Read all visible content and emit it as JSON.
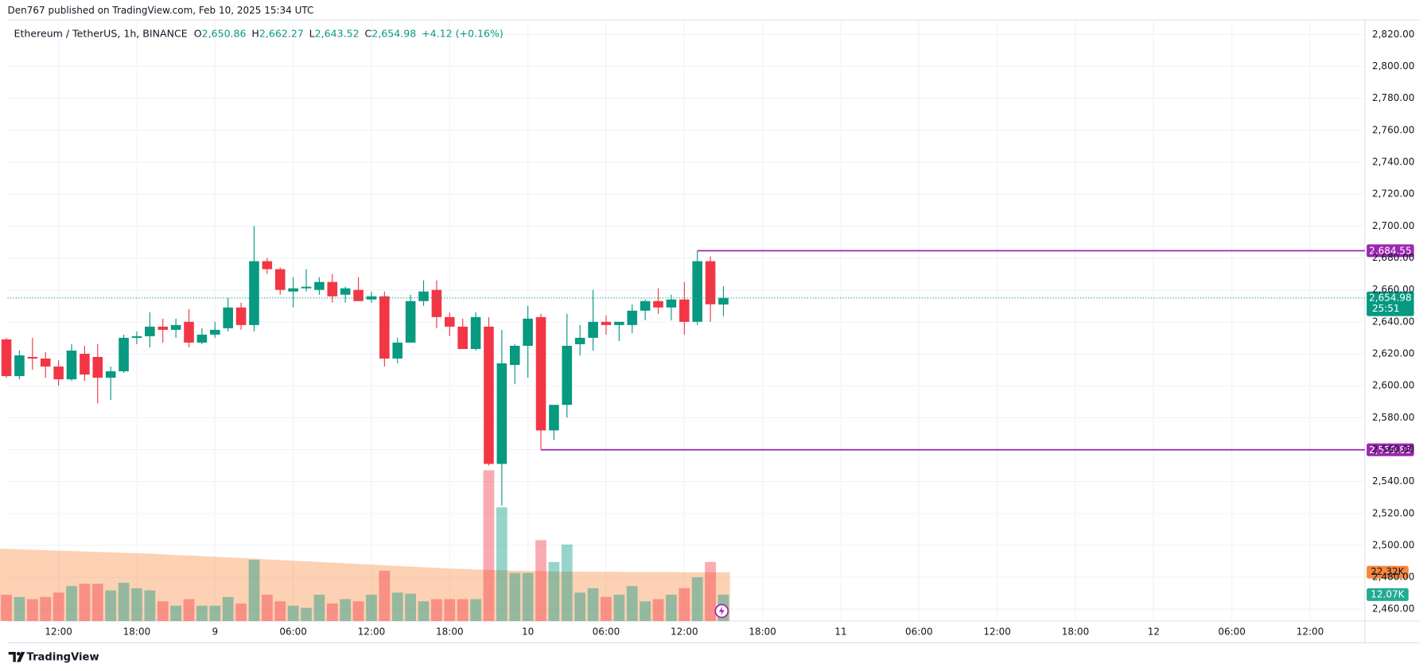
{
  "header": {
    "published": "Den767 published on TradingView.com, Feb 10, 2025 15:34 UTC"
  },
  "chart_data": {
    "type": "candlestick",
    "title": "Ethereum / TetherUS, 1h, BINANCE",
    "ohlc_legend": [
      {
        "label": "O",
        "value": "2,650.86"
      },
      {
        "label": "H",
        "value": "2,662.27"
      },
      {
        "label": "L",
        "value": "2,643.52"
      },
      {
        "label": "C",
        "value": "2,654.98"
      }
    ],
    "change": "+4.12 (+0.16%)",
    "open": [
      2629,
      2606,
      2618,
      2617,
      2612,
      2604,
      2620,
      2618,
      2605,
      2609,
      2630,
      2631,
      2637,
      2635,
      2640,
      2627,
      2632,
      2636,
      2649,
      2638,
      2678,
      2673,
      2659,
      2661,
      2660,
      2665,
      2657,
      2660,
      2654,
      2656,
      2617,
      2627,
      2653,
      2660,
      2643,
      2637,
      2623,
      2637,
      2551,
      2613,
      2625,
      2643,
      2572,
      2588,
      2626,
      2630,
      2640,
      2638,
      2638,
      2647,
      2653,
      2649,
      2654,
      2640,
      2678,
      2650.86
    ],
    "high": [
      2630,
      2622,
      2630,
      2621,
      2616,
      2626,
      2625,
      2626,
      2612,
      2632,
      2634,
      2646,
      2642,
      2642,
      2648,
      2636,
      2640,
      2655,
      2652,
      2700,
      2680,
      2674,
      2668,
      2673,
      2668,
      2670,
      2662,
      2668,
      2659,
      2659,
      2630,
      2657,
      2666,
      2666,
      2646,
      2642,
      2646,
      2643,
      2635,
      2626,
      2650,
      2645,
      2588,
      2645,
      2638,
      2660,
      2644,
      2640,
      2651,
      2654,
      2661,
      2657,
      2665,
      2684.55,
      2681,
      2662.27
    ],
    "low": [
      2605,
      2604,
      2610,
      2605,
      2600,
      2603,
      2603,
      2589,
      2591,
      2608,
      2626,
      2624,
      2627,
      2630,
      2624,
      2626,
      2630,
      2634,
      2635,
      2634,
      2670,
      2657,
      2649,
      2659,
      2657,
      2652,
      2652,
      2653,
      2652,
      2612,
      2614,
      2627,
      2650,
      2636,
      2631,
      2623,
      2622,
      2550,
      2525,
      2601,
      2605,
      2559.85,
      2566,
      2580,
      2619,
      2622,
      2632,
      2628,
      2633,
      2641,
      2645,
      2641,
      2632,
      2638,
      2640,
      2643.52
    ],
    "close": [
      2606,
      2619,
      2617,
      2612,
      2604,
      2622,
      2607,
      2605,
      2609,
      2630,
      2631,
      2637,
      2635,
      2638,
      2627,
      2632,
      2635,
      2649,
      2638,
      2678,
      2673,
      2660,
      2661,
      2662,
      2665,
      2656,
      2661,
      2653,
      2656,
      2617,
      2627,
      2653,
      2659,
      2643,
      2637,
      2623,
      2643,
      2551,
      2614,
      2625,
      2642,
      2572,
      2588,
      2625,
      2630,
      2640,
      2638,
      2640,
      2647,
      2653,
      2649,
      2654,
      2640,
      2678,
      2651,
      2654.98
    ],
    "volume": [
      12,
      11,
      10,
      11,
      13,
      16,
      17,
      17,
      14,
      17.5,
      15,
      14,
      9,
      7,
      10,
      7,
      7,
      11,
      8,
      28,
      12,
      9,
      7,
      6,
      12,
      8,
      10,
      9,
      12,
      23,
      13,
      12.5,
      9,
      10,
      10,
      10,
      10,
      69,
      52,
      22,
      22,
      37,
      27,
      35,
      13,
      15,
      11,
      12,
      16,
      9,
      10,
      12,
      15,
      20,
      27,
      12.07
    ],
    "volume_ma": [
      33,
      32.8,
      32.6,
      32.4,
      32.2,
      32,
      31.8,
      31.6,
      31.4,
      31.2,
      31,
      30.8,
      30.5,
      30.2,
      30,
      29.7,
      29.4,
      29.1,
      28.8,
      28.5,
      28.2,
      27.9,
      27.6,
      27.3,
      27,
      26.7,
      26.4,
      26.1,
      25.8,
      25.5,
      25.2,
      24.9,
      24.6,
      24.3,
      24,
      23.8,
      23.6,
      23.4,
      23.2,
      23,
      22.9,
      22.8,
      22.7,
      22.6,
      22.6,
      22.5,
      22.5,
      22.5,
      22.4,
      22.4,
      22.4,
      22.4,
      22.3,
      22.3,
      22.3,
      22.32
    ],
    "volume_label": "12.07K",
    "volume_ma_label": "22.32K",
    "volume_ylim": [
      0,
      275
    ],
    "colors": {
      "up": "#089981",
      "down": "#f23645",
      "level": "#9c27b0",
      "volume_ma": "#f7873b"
    },
    "ylim": [
      2452.6,
      2829.1
    ],
    "yticks": [
      {
        "value": 2460,
        "label": "2,460.00"
      },
      {
        "value": 2480,
        "label": "2,480.00"
      },
      {
        "value": 2500,
        "label": "2,500.00"
      },
      {
        "value": 2520,
        "label": "2,520.00"
      },
      {
        "value": 2540,
        "label": "2,540.00"
      },
      {
        "value": 2560,
        "label": "2,560.00"
      },
      {
        "value": 2580,
        "label": "2,580.00"
      },
      {
        "value": 2600,
        "label": "2,600.00"
      },
      {
        "value": 2620,
        "label": "2,620.00"
      },
      {
        "value": 2640,
        "label": "2,640.00"
      },
      {
        "value": 2660,
        "label": "2,660.00"
      },
      {
        "value": 2680,
        "label": "2,680.00"
      },
      {
        "value": 2700,
        "label": "2,700.00"
      },
      {
        "value": 2720,
        "label": "2,720.00"
      },
      {
        "value": 2740,
        "label": "2,740.00"
      },
      {
        "value": 2760,
        "label": "2,760.00"
      },
      {
        "value": 2780,
        "label": "2,780.00"
      },
      {
        "value": 2800,
        "label": "2,800.00"
      },
      {
        "value": 2820,
        "label": "2,820.00"
      }
    ],
    "xlim": [
      0.09,
      104.2
    ],
    "xticks": [
      {
        "value": 4,
        "label": "12:00"
      },
      {
        "value": 10,
        "label": "18:00"
      },
      {
        "value": 16,
        "label": "9"
      },
      {
        "value": 22,
        "label": "06:00"
      },
      {
        "value": 28,
        "label": "12:00"
      },
      {
        "value": 34,
        "label": "18:00"
      },
      {
        "value": 40,
        "label": "10"
      },
      {
        "value": 46,
        "label": "06:00"
      },
      {
        "value": 52,
        "label": "12:00"
      },
      {
        "value": 58,
        "label": "18:00"
      },
      {
        "value": 64,
        "label": "11"
      },
      {
        "value": 70,
        "label": "06:00"
      },
      {
        "value": 76,
        "label": "12:00"
      },
      {
        "value": 82,
        "label": "18:00"
      },
      {
        "value": 88,
        "label": "12"
      },
      {
        "value": 94,
        "label": "06:00"
      },
      {
        "value": 100,
        "label": "12:00"
      }
    ],
    "grid": true,
    "levels": [
      {
        "value": 2684.55,
        "label": "2,684.55",
        "anchor": "high"
      },
      {
        "value": 2559.85,
        "label": "2,559.85",
        "anchor": "low"
      }
    ],
    "last_price": {
      "value": 2654.98,
      "label": "2,654.98",
      "countdown": "25:51"
    }
  },
  "footer": {
    "brand": "TradingView"
  }
}
